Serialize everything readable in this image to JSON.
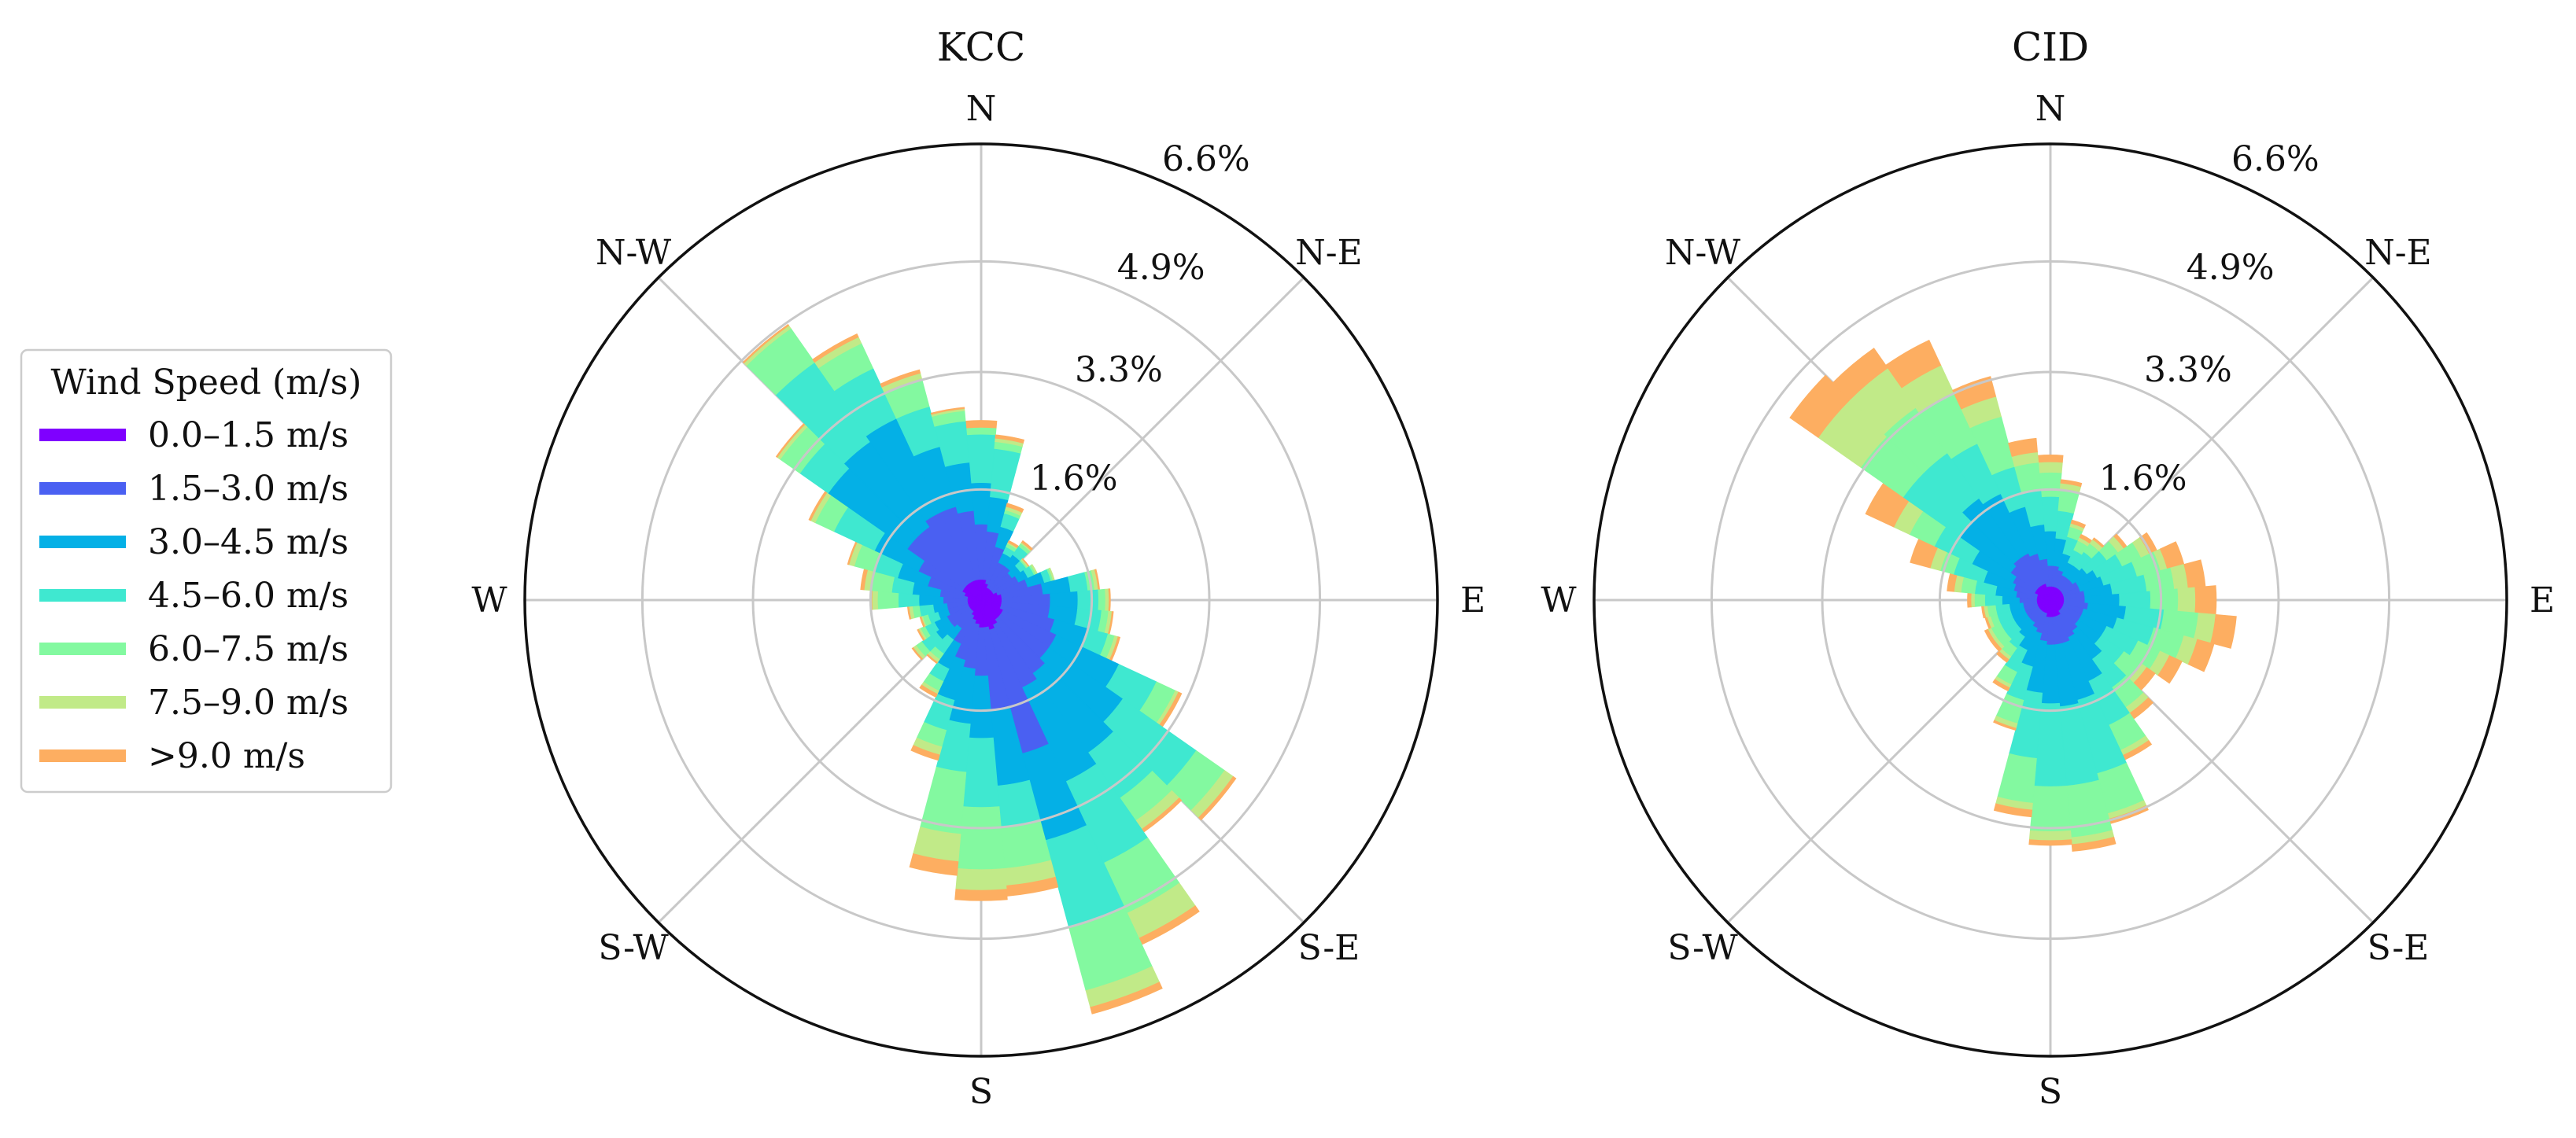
{
  "chart_data": {
    "type": "windrose",
    "legend": {
      "title": "Wind Speed (m/s)",
      "placement": "center-left",
      "entries": [
        {
          "label": "0.0–1.5 m/s",
          "color": "#7f00ff"
        },
        {
          "label": "1.5–3.0 m/s",
          "color": "#4a60f2"
        },
        {
          "label": "3.0–4.5 m/s",
          "color": "#04b0e6"
        },
        {
          "label": "4.5–6.0 m/s",
          "color": "#3fe8d0"
        },
        {
          "label": "6.0–7.5 m/s",
          "color": "#83f9a0"
        },
        {
          "label": "7.5–9.0 m/s",
          "color": "#c1ea88"
        },
        {
          "label": ">9.0 m/s",
          "color": "#fdae61"
        }
      ]
    },
    "radial_max": 6.6,
    "ring_values": [
      1.6,
      3.3,
      4.9,
      6.6
    ],
    "ring_labels": [
      "1.6%",
      "3.3%",
      "4.9%",
      "6.6%"
    ],
    "direction_labels": {
      "N": "N",
      "NE": "N-E",
      "E": "E",
      "SE": "S-E",
      "S": "S",
      "SW": "S-W",
      "W": "W",
      "NW": "N-W"
    },
    "sector_width_deg": 10,
    "panels": [
      {
        "title": "KCC",
        "sectors": [
          {
            "dir": 0,
            "v": [
              0.3,
              1.1,
              1.7,
              2.4,
              2.5,
              2.5,
              2.6
            ]
          },
          {
            "dir": 10,
            "v": [
              0.3,
              1.0,
              1.5,
              2.2,
              2.3,
              2.35,
              2.4
            ]
          },
          {
            "dir": 20,
            "v": [
              0.25,
              0.8,
              1.1,
              1.3,
              1.35,
              1.4,
              1.45
            ]
          },
          {
            "dir": 30,
            "v": [
              0.2,
              0.6,
              0.75,
              0.85,
              0.9,
              0.92,
              0.95
            ]
          },
          {
            "dir": 40,
            "v": [
              0.2,
              0.6,
              0.8,
              0.95,
              1.0,
              1.02,
              1.05
            ]
          },
          {
            "dir": 50,
            "v": [
              0.2,
              0.55,
              0.7,
              0.8,
              0.82,
              0.84,
              0.85
            ]
          },
          {
            "dir": 60,
            "v": [
              0.2,
              0.6,
              0.75,
              0.85,
              0.88,
              0.9,
              0.9
            ]
          },
          {
            "dir": 70,
            "v": [
              0.25,
              0.7,
              0.95,
              1.05,
              1.08,
              1.1,
              1.1
            ]
          },
          {
            "dir": 80,
            "v": [
              0.3,
              0.9,
              1.3,
              1.55,
              1.65,
              1.7,
              1.72
            ]
          },
          {
            "dir": 90,
            "v": [
              0.3,
              1.0,
              1.4,
              1.7,
              1.8,
              1.85,
              1.87
            ]
          },
          {
            "dir": 100,
            "v": [
              0.3,
              1.0,
              1.4,
              1.75,
              1.85,
              1.9,
              1.92
            ]
          },
          {
            "dir": 110,
            "v": [
              0.3,
              1.1,
              1.6,
              1.9,
              2.0,
              2.05,
              2.08
            ]
          },
          {
            "dir": 120,
            "v": [
              0.35,
              1.2,
              2.2,
              2.8,
              3.1,
              3.15,
              3.2
            ]
          },
          {
            "dir": 130,
            "v": [
              0.35,
              1.2,
              2.5,
              3.8,
              4.3,
              4.45,
              4.5
            ]
          },
          {
            "dir": 140,
            "v": [
              0.35,
              1.3,
              2.7,
              3.5,
              3.9,
              4.05,
              4.1
            ]
          },
          {
            "dir": 150,
            "v": [
              0.4,
              1.4,
              2.9,
              4.2,
              5.0,
              5.4,
              5.5
            ]
          },
          {
            "dir": 160,
            "v": [
              0.45,
              2.3,
              3.6,
              4.9,
              5.85,
              6.1,
              6.2
            ]
          },
          {
            "dir": 170,
            "v": [
              0.4,
              1.6,
              2.7,
              3.3,
              3.9,
              4.15,
              4.3
            ]
          },
          {
            "dir": 180,
            "v": [
              0.4,
              1.1,
              2.0,
              3.0,
              3.9,
              4.2,
              4.35
            ]
          },
          {
            "dir": 190,
            "v": [
              0.35,
              1.0,
              1.8,
              2.5,
              3.4,
              3.8,
              4.0
            ]
          },
          {
            "dir": 200,
            "v": [
              0.3,
              0.9,
              1.5,
              1.95,
              2.2,
              2.32,
              2.4
            ]
          },
          {
            "dir": 210,
            "v": [
              0.25,
              0.7,
              1.1,
              1.3,
              1.45,
              1.5,
              1.55
            ]
          },
          {
            "dir": 220,
            "v": [
              0.2,
              0.5,
              0.7,
              0.95,
              1.05,
              1.1,
              1.12
            ]
          },
          {
            "dir": 230,
            "v": [
              0.2,
              0.55,
              0.8,
              1.05,
              1.15,
              1.2,
              1.22
            ]
          },
          {
            "dir": 240,
            "v": [
              0.2,
              0.55,
              0.75,
              0.9,
              0.97,
              1.0,
              1.02
            ]
          },
          {
            "dir": 250,
            "v": [
              0.2,
              0.5,
              0.65,
              0.8,
              0.88,
              0.9,
              0.92
            ]
          },
          {
            "dir": 260,
            "v": [
              0.2,
              0.5,
              0.7,
              0.9,
              1.0,
              1.05,
              1.07
            ]
          },
          {
            "dir": 270,
            "v": [
              0.2,
              0.55,
              0.9,
              1.2,
              1.5,
              1.58,
              1.6
            ]
          },
          {
            "dir": 280,
            "v": [
              0.2,
              0.6,
              1.0,
              1.3,
              1.6,
              1.7,
              1.75
            ]
          },
          {
            "dir": 290,
            "v": [
              0.25,
              0.8,
              1.25,
              1.6,
              1.9,
              1.98,
              2.0
            ]
          },
          {
            "dir": 300,
            "v": [
              0.3,
              1.0,
              1.7,
              2.35,
              2.65,
              2.72,
              2.75
            ]
          },
          {
            "dir": 310,
            "v": [
              0.3,
              1.3,
              2.7,
              3.2,
              3.55,
              3.6,
              3.62
            ]
          },
          {
            "dir": 320,
            "v": [
              0.3,
              1.3,
              2.8,
              4.2,
              4.8,
              4.85,
              4.87
            ]
          },
          {
            "dir": 330,
            "v": [
              0.3,
              1.4,
              2.9,
              3.7,
              4.1,
              4.2,
              4.25
            ]
          },
          {
            "dir": 340,
            "v": [
              0.3,
              1.4,
              2.3,
              2.9,
              3.3,
              3.4,
              3.45
            ]
          },
          {
            "dir": 350,
            "v": [
              0.3,
              1.3,
              2.0,
              2.6,
              2.75,
              2.78,
              2.8
            ]
          }
        ]
      },
      {
        "title": "CID",
        "sectors": [
          {
            "dir": 0,
            "v": [
              0.2,
              0.5,
              1.0,
              1.5,
              1.85,
              2.0,
              2.1
            ]
          },
          {
            "dir": 10,
            "v": [
              0.2,
              0.5,
              0.9,
              1.3,
              1.6,
              1.7,
              1.75
            ]
          },
          {
            "dir": 20,
            "v": [
              0.2,
              0.45,
              0.7,
              0.95,
              1.1,
              1.15,
              1.2
            ]
          },
          {
            "dir": 30,
            "v": [
              0.2,
              0.4,
              0.6,
              0.8,
              0.95,
              1.0,
              1.05
            ]
          },
          {
            "dir": 40,
            "v": [
              0.2,
              0.4,
              0.6,
              0.85,
              1.0,
              1.07,
              1.1
            ]
          },
          {
            "dir": 50,
            "v": [
              0.2,
              0.4,
              0.65,
              1.0,
              1.2,
              1.3,
              1.35
            ]
          },
          {
            "dir": 60,
            "v": [
              0.2,
              0.45,
              0.75,
              1.15,
              1.45,
              1.58,
              1.7
            ]
          },
          {
            "dir": 70,
            "v": [
              0.2,
              0.45,
              0.8,
              1.3,
              1.65,
              1.75,
              2.0
            ]
          },
          {
            "dir": 80,
            "v": [
              0.2,
              0.5,
              0.9,
              1.4,
              1.8,
              2.0,
              2.25
            ]
          },
          {
            "dir": 90,
            "v": [
              0.2,
              0.5,
              1.0,
              1.45,
              1.85,
              2.1,
              2.4
            ]
          },
          {
            "dir": 100,
            "v": [
              0.2,
              0.55,
              1.1,
              1.65,
              2.15,
              2.4,
              2.7
            ]
          },
          {
            "dir": 110,
            "v": [
              0.2,
              0.5,
              1.0,
              1.55,
              2.0,
              2.2,
              2.45
            ]
          },
          {
            "dir": 120,
            "v": [
              0.2,
              0.5,
              0.9,
              1.4,
              1.75,
              1.9,
              2.1
            ]
          },
          {
            "dir": 130,
            "v": [
              0.2,
              0.5,
              0.9,
              1.3,
              1.6,
              1.7,
              1.85
            ]
          },
          {
            "dir": 140,
            "v": [
              0.2,
              0.55,
              1.05,
              1.55,
              1.9,
              2.0,
              2.1
            ]
          },
          {
            "dir": 150,
            "v": [
              0.25,
              0.6,
              1.3,
              2.0,
              2.4,
              2.48,
              2.55
            ]
          },
          {
            "dir": 160,
            "v": [
              0.25,
              0.65,
              1.5,
              2.6,
              3.2,
              3.28,
              3.35
            ]
          },
          {
            "dir": 170,
            "v": [
              0.25,
              0.65,
              1.55,
              2.7,
              3.45,
              3.55,
              3.65
            ]
          },
          {
            "dir": 180,
            "v": [
              0.25,
              0.65,
              1.5,
              2.7,
              3.35,
              3.48,
              3.55
            ]
          },
          {
            "dir": 190,
            "v": [
              0.25,
              0.6,
              1.35,
              2.3,
              2.95,
              3.05,
              3.15
            ]
          },
          {
            "dir": 200,
            "v": [
              0.2,
              0.5,
              1.0,
              1.5,
              1.85,
              1.92,
              1.95
            ]
          },
          {
            "dir": 210,
            "v": [
              0.2,
              0.45,
              0.8,
              1.15,
              1.35,
              1.4,
              1.45
            ]
          },
          {
            "dir": 220,
            "v": [
              0.2,
              0.4,
              0.65,
              0.85,
              1.0,
              1.05,
              1.1
            ]
          },
          {
            "dir": 230,
            "v": [
              0.2,
              0.4,
              0.6,
              0.8,
              0.95,
              1.0,
              1.05
            ]
          },
          {
            "dir": 240,
            "v": [
              0.2,
              0.4,
              0.6,
              0.8,
              0.95,
              1.0,
              1.05
            ]
          },
          {
            "dir": 250,
            "v": [
              0.2,
              0.4,
              0.6,
              0.8,
              0.9,
              0.95,
              0.98
            ]
          },
          {
            "dir": 260,
            "v": [
              0.2,
              0.4,
              0.6,
              0.8,
              0.92,
              0.97,
              1.0
            ]
          },
          {
            "dir": 270,
            "v": [
              0.2,
              0.45,
              0.7,
              0.95,
              1.1,
              1.15,
              1.2
            ]
          },
          {
            "dir": 280,
            "v": [
              0.2,
              0.5,
              0.8,
              1.1,
              1.3,
              1.4,
              1.5
            ]
          },
          {
            "dir": 290,
            "v": [
              0.2,
              0.55,
              1.0,
              1.45,
              1.65,
              1.8,
              2.1
            ]
          },
          {
            "dir": 300,
            "v": [
              0.25,
              0.6,
              1.25,
              1.85,
              2.25,
              2.5,
              2.95
            ]
          },
          {
            "dir": 310,
            "v": [
              0.25,
              0.7,
              1.6,
              2.6,
              3.35,
              4.1,
              4.6
            ]
          },
          {
            "dir": 320,
            "v": [
              0.25,
              0.75,
              1.8,
              2.6,
              3.4,
              4.1,
              4.45
            ]
          },
          {
            "dir": 330,
            "v": [
              0.25,
              0.75,
              1.7,
              2.5,
              3.3,
              3.75,
              4.15
            ]
          },
          {
            "dir": 340,
            "v": [
              0.25,
              0.7,
              1.4,
              2.0,
              2.75,
              3.05,
              3.35
            ]
          },
          {
            "dir": 350,
            "v": [
              0.2,
              0.6,
              1.1,
              1.6,
              2.0,
              2.15,
              2.35
            ]
          }
        ]
      }
    ]
  }
}
